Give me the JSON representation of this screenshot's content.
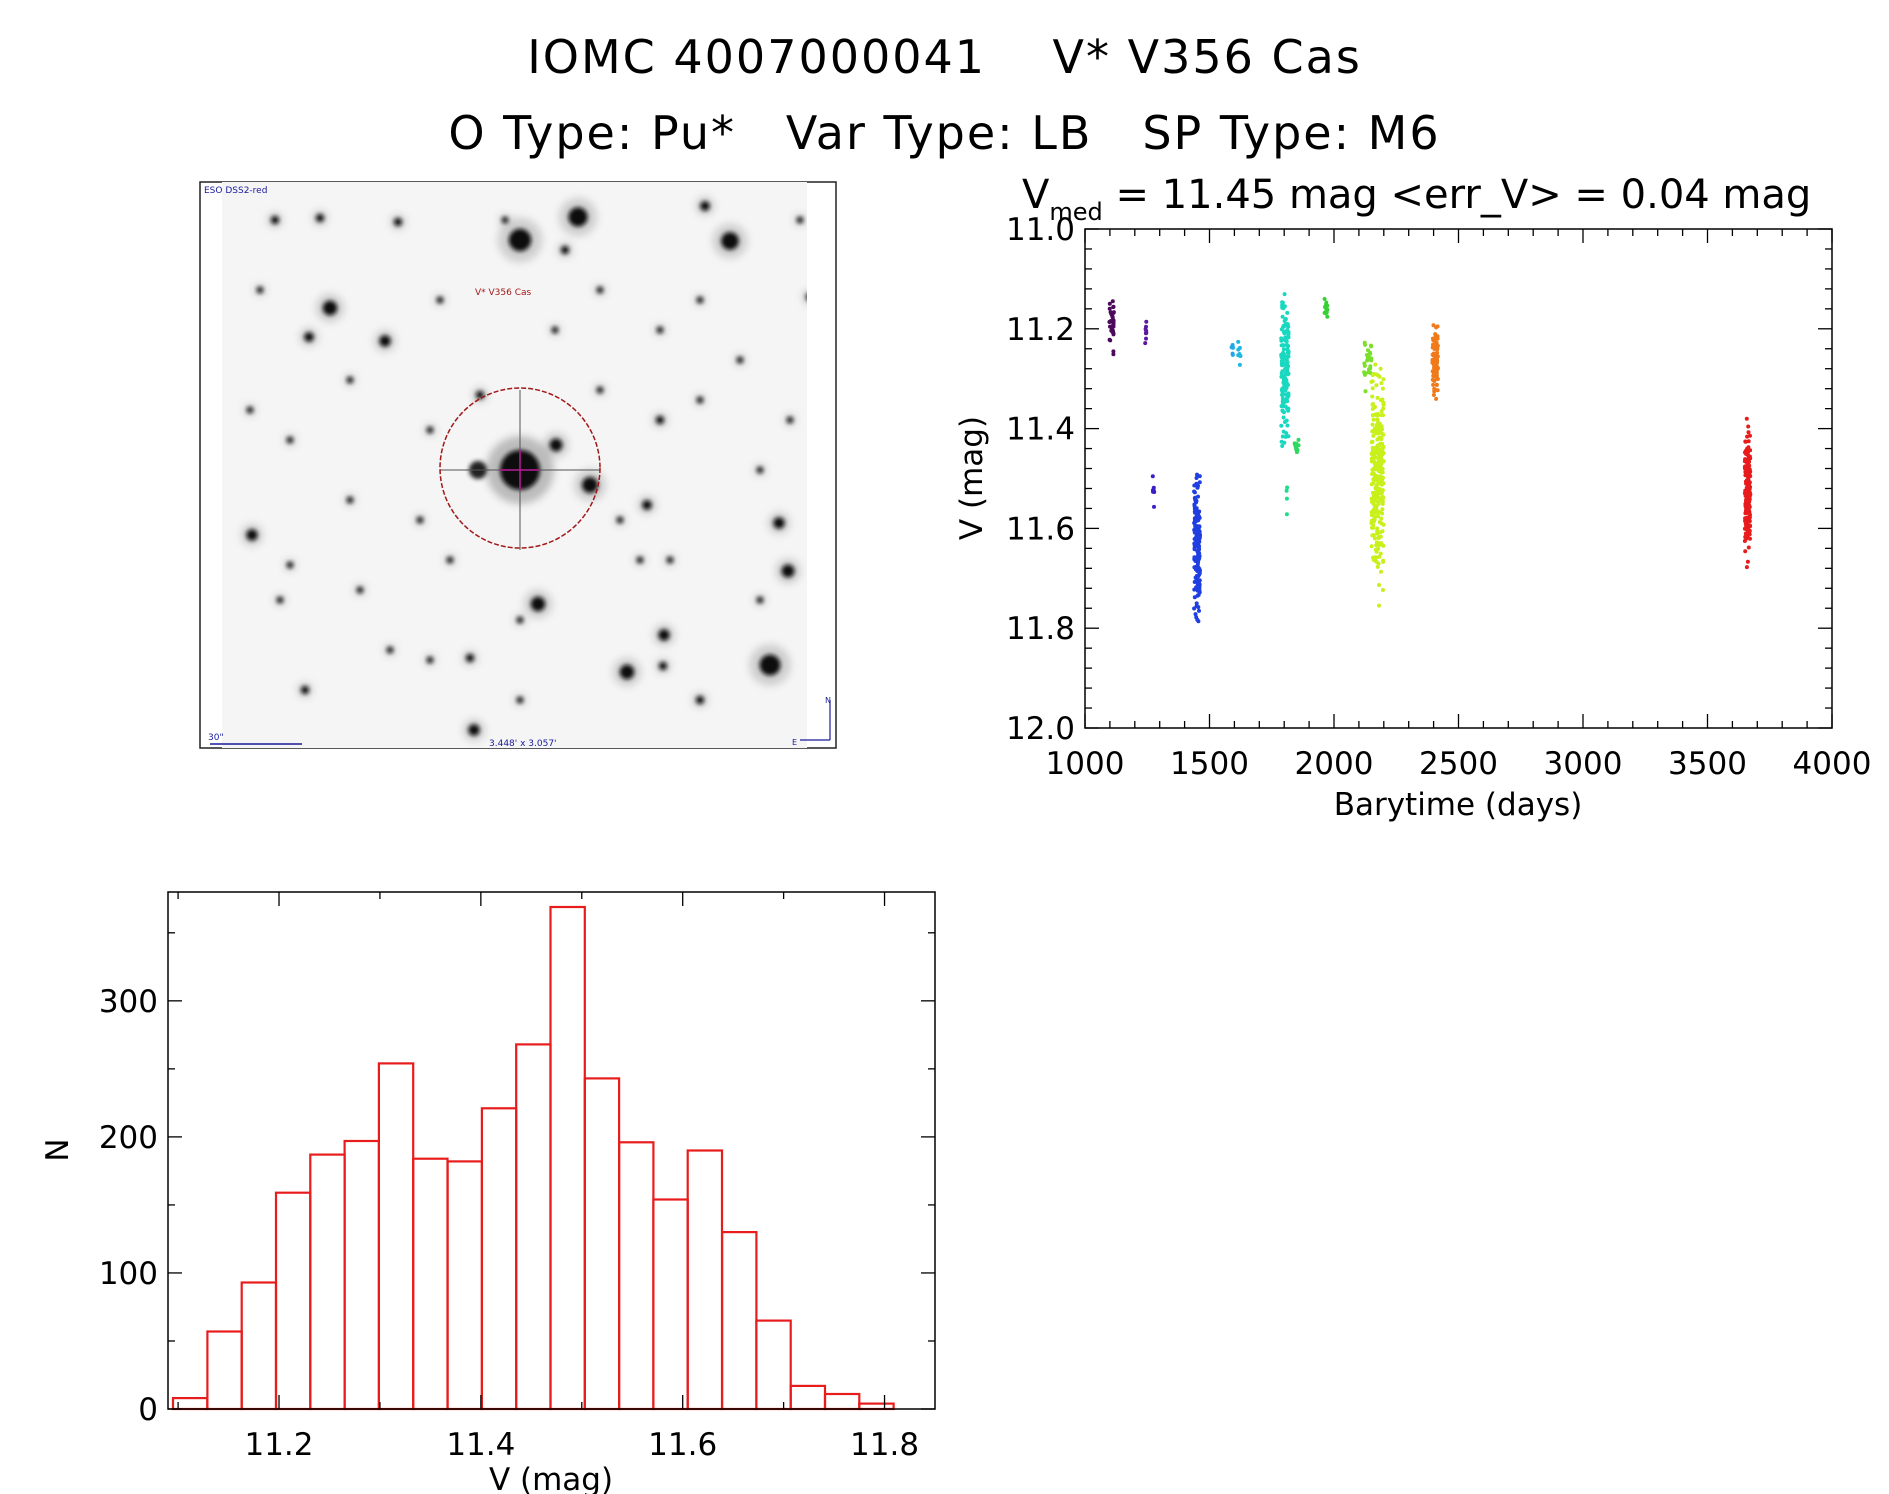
{
  "header": {
    "title_line1": "IOMC 4007000041    V* V356 Cas",
    "title_line2": "O Type: Pu*   Var Type: LB   SP Type: M6"
  },
  "finder_chart": {
    "survey_label": "ESO DSS2-red",
    "object_label": "V* V356 Cas",
    "scale_label": "30\"",
    "fov_label": "3.448' x 3.057'",
    "north_label": "N",
    "east_label": "E",
    "colors": {
      "labels": "#1a1a9a",
      "circle": "#a01818"
    }
  },
  "chart_data": [
    {
      "type": "scatter",
      "title": "V_med = 11.45 mag <err_V> = 0.04 mag",
      "title_parts": {
        "v": "V",
        "sub": "med",
        "rest": " = 11.45 mag <err_V> = 0.04 mag"
      },
      "xlabel": "Barytime (days)",
      "ylabel": "V (mag)",
      "xlim": [
        1000,
        4000
      ],
      "ylim": [
        12.0,
        11.0
      ],
      "y_inverted": true,
      "xticks": [
        1000,
        1500,
        2000,
        2500,
        3000,
        3500,
        4000
      ],
      "yticks": [
        "11.0",
        "11.2",
        "11.4",
        "11.6",
        "11.8",
        "12.0"
      ],
      "series": [
        {
          "color": "#4b0a5a",
          "x_range": [
            1098,
            1116
          ],
          "y_range": [
            11.12,
            11.26
          ],
          "n": 40
        },
        {
          "color": "#5a19a0",
          "x_range": [
            1240,
            1248
          ],
          "y_range": [
            11.16,
            11.25
          ],
          "n": 8
        },
        {
          "color": "#3a1fc8",
          "x_range": [
            1272,
            1278
          ],
          "y_range": [
            11.49,
            11.57
          ],
          "n": 8
        },
        {
          "color": "#1f3fe0",
          "x_range": [
            1438,
            1462
          ],
          "y_range": [
            11.46,
            11.82
          ],
          "n": 160
        },
        {
          "color": "#1fa8e8",
          "x_range": [
            1588,
            1595
          ],
          "y_range": [
            11.23,
            11.26
          ],
          "n": 5
        },
        {
          "color": "#1fb8e0",
          "x_range": [
            1615,
            1625
          ],
          "y_range": [
            11.21,
            11.28
          ],
          "n": 8
        },
        {
          "color": "#19d8c0",
          "x_range": [
            1788,
            1818
          ],
          "y_range": [
            11.09,
            11.46
          ],
          "n": 160
        },
        {
          "color": "#1fdc8c",
          "x_range": [
            1808,
            1815
          ],
          "y_range": [
            11.49,
            11.59
          ],
          "n": 4
        },
        {
          "color": "#2fd860",
          "x_range": [
            1840,
            1862
          ],
          "y_range": [
            11.4,
            11.46
          ],
          "n": 10
        },
        {
          "color": "#34d034",
          "x_range": [
            1960,
            1975
          ],
          "y_range": [
            11.12,
            11.19
          ],
          "n": 12
        },
        {
          "color": "#7be02a",
          "x_range": [
            2120,
            2150
          ],
          "y_range": [
            11.18,
            11.34
          ],
          "n": 25
        },
        {
          "color": "#c8f01a",
          "x_range": [
            2150,
            2200
          ],
          "y_range": [
            11.2,
            11.78
          ],
          "n": 280
        },
        {
          "color": "#f07a1a",
          "x_range": [
            2395,
            2418
          ],
          "y_range": [
            11.18,
            11.36
          ],
          "n": 90
        },
        {
          "color": "#e81c1c",
          "x_range": [
            3650,
            3672
          ],
          "y_range": [
            11.35,
            11.7
          ],
          "n": 200
        }
      ]
    },
    {
      "type": "bar",
      "xlabel": "V (mag)",
      "ylabel": "N",
      "xlim": [
        11.09,
        11.85
      ],
      "ylim": [
        0,
        380
      ],
      "xticks": [
        "11.2",
        "11.4",
        "11.6",
        "11.8"
      ],
      "yticks": [
        "0",
        "100",
        "200",
        "300"
      ],
      "bar_color": "#e81c1c",
      "bin_width": 0.034,
      "bin_start": 11.095,
      "values": [
        8,
        57,
        93,
        159,
        187,
        197,
        254,
        184,
        182,
        221,
        268,
        369,
        243,
        196,
        154,
        190,
        130,
        65,
        17,
        11,
        4
      ]
    }
  ]
}
